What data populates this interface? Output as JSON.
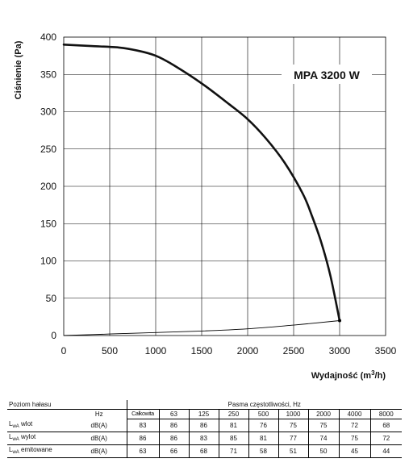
{
  "chart_data": {
    "type": "line",
    "model_label": "MPA 3200 W",
    "xlabel": "Wydajność (m³/h)",
    "ylabel": "Ciśnienie (Pa)",
    "xlim": [
      0,
      3500
    ],
    "ylim": [
      0,
      400
    ],
    "x_ticks": [
      0,
      500,
      1000,
      1500,
      2000,
      2500,
      3000,
      3500
    ],
    "y_ticks": [
      0,
      50,
      100,
      150,
      200,
      250,
      300,
      350,
      400
    ],
    "grid": true,
    "series": [
      {
        "role": "fan-curve",
        "x": [
          0,
          300,
          600,
          800,
          1000,
          1200,
          1500,
          1800,
          2000,
          2200,
          2400,
          2600,
          2700,
          2800,
          2900,
          3000
        ],
        "y": [
          390,
          388,
          386,
          382,
          375,
          362,
          338,
          310,
          290,
          264,
          232,
          190,
          160,
          125,
          80,
          20
        ]
      },
      {
        "role": "system-curve",
        "x": [
          0,
          500,
          1000,
          1500,
          2000,
          2500,
          3000
        ],
        "y": [
          0,
          2,
          4,
          6,
          9,
          14,
          20
        ]
      }
    ]
  },
  "noise_table": {
    "title": "Poziom hałasu",
    "hz_label": "Hz",
    "bands_title": "Pasma częstotliwości, Hz",
    "total_label": "Całkowita",
    "frequencies": [
      "63",
      "125",
      "250",
      "500",
      "1000",
      "2000",
      "4000",
      "8000"
    ],
    "rows": [
      {
        "label": "L",
        "sub": "wA",
        "suffix": " wlot",
        "unit": "dB(A)",
        "total": "83",
        "values": [
          "86",
          "86",
          "81",
          "76",
          "75",
          "75",
          "72",
          "68"
        ]
      },
      {
        "label": "L",
        "sub": "wA",
        "suffix": " wylot",
        "unit": "dB(A)",
        "total": "86",
        "values": [
          "86",
          "83",
          "85",
          "81",
          "77",
          "74",
          "75",
          "72"
        ]
      },
      {
        "label": "L",
        "sub": "wA",
        "suffix": " emitowane",
        "unit": "dB(A)",
        "total": "63",
        "values": [
          "66",
          "68",
          "71",
          "58",
          "51",
          "50",
          "45",
          "44"
        ]
      }
    ]
  }
}
